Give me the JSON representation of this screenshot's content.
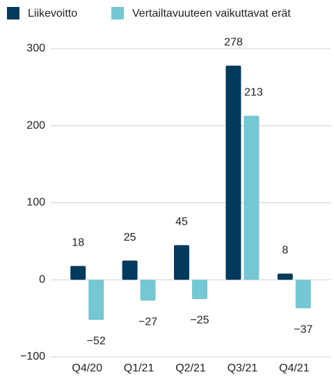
{
  "chart_data": {
    "type": "bar",
    "categories": [
      "Q4/20",
      "Q1/21",
      "Q2/21",
      "Q3/21",
      "Q4/21"
    ],
    "series": [
      {
        "name": "Liikevoitto",
        "color": "#003a5d",
        "values": [
          18,
          25,
          45,
          278,
          8
        ]
      },
      {
        "name": "Vertailtavuuteen vaikuttavat erät",
        "color": "#74c7d3",
        "values": [
          -52,
          -27,
          -25,
          213,
          -37
        ],
        "value_labels": [
          "−52",
          "−27",
          "−25",
          "213",
          "−37"
        ]
      }
    ],
    "ylim": [
      -100,
      300
    ],
    "yticks": [
      {
        "value": -100,
        "label": "−100"
      },
      0,
      100,
      200,
      300
    ],
    "grid": true,
    "legend": "top"
  }
}
